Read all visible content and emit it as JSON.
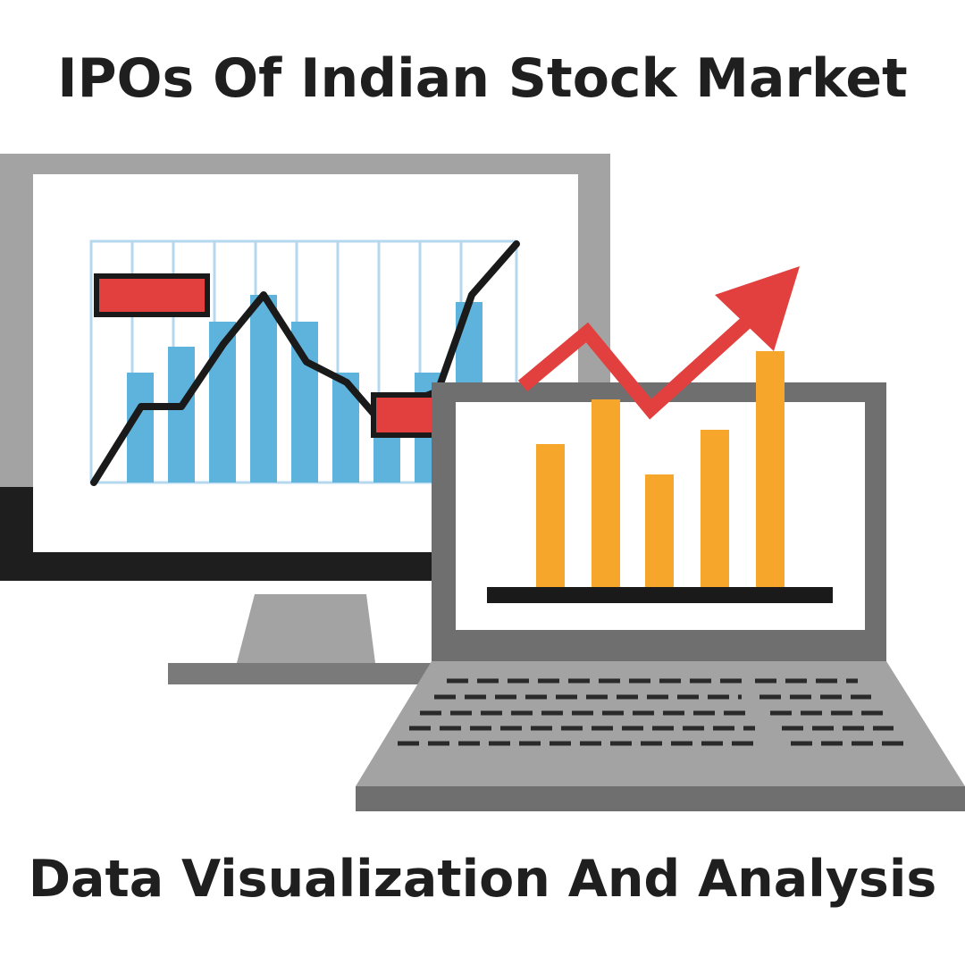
{
  "header": {
    "title": "IPOs Of Indian Stock Market"
  },
  "footer": {
    "subtitle": "Data Visualization And Analysis"
  }
}
